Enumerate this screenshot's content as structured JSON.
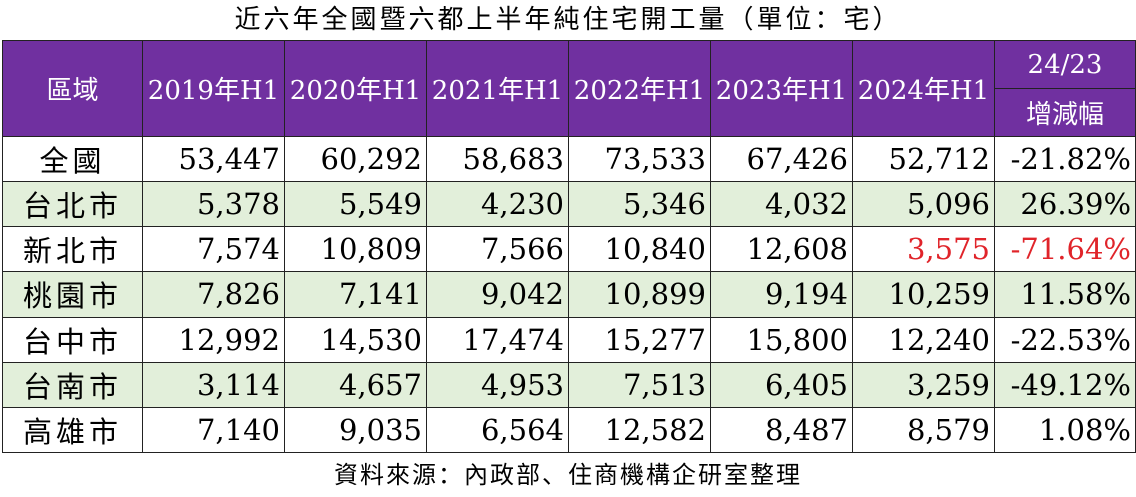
{
  "title": "近六年全國暨六都上半年純住宅開工量（單位：宅）",
  "footer": "資料來源：內政部、住商機構企研室整理",
  "colors": {
    "header_bg": "#7030a0",
    "alt_row_bg": "#e2efda",
    "highlight": "#e0242a"
  },
  "chart_data": {
    "type": "table",
    "title": "近六年全國暨六都上半年純住宅開工量（單位：宅）",
    "header_region": "區域",
    "years": [
      "2019年H1",
      "2020年H1",
      "2021年H1",
      "2022年H1",
      "2023年H1",
      "2024年H1"
    ],
    "change_header_top": "24/23",
    "change_header_bottom": "增減幅",
    "rows": [
      {
        "region": "全國",
        "values": [
          "53,447",
          "60,292",
          "58,683",
          "73,533",
          "67,426",
          "52,712"
        ],
        "change": "-21.82%"
      },
      {
        "region": "台北市",
        "values": [
          "5,378",
          "5,549",
          "4,230",
          "5,346",
          "4,032",
          "5,096"
        ],
        "change": "26.39%"
      },
      {
        "region": "新北市",
        "values": [
          "7,574",
          "10,809",
          "7,566",
          "10,840",
          "12,608",
          "3,575"
        ],
        "change": "-71.64%",
        "highlight": true
      },
      {
        "region": "桃園市",
        "values": [
          "7,826",
          "7,141",
          "9,042",
          "10,899",
          "9,194",
          "10,259"
        ],
        "change": "11.58%"
      },
      {
        "region": "台中市",
        "values": [
          "12,992",
          "14,530",
          "17,474",
          "15,277",
          "15,800",
          "12,240"
        ],
        "change": "-22.53%"
      },
      {
        "region": "台南市",
        "values": [
          "3,114",
          "4,657",
          "4,953",
          "7,513",
          "6,405",
          "3,259"
        ],
        "change": "-49.12%"
      },
      {
        "region": "高雄市",
        "values": [
          "7,140",
          "9,035",
          "6,564",
          "12,582",
          "8,487",
          "8,579"
        ],
        "change": "1.08%"
      }
    ]
  }
}
